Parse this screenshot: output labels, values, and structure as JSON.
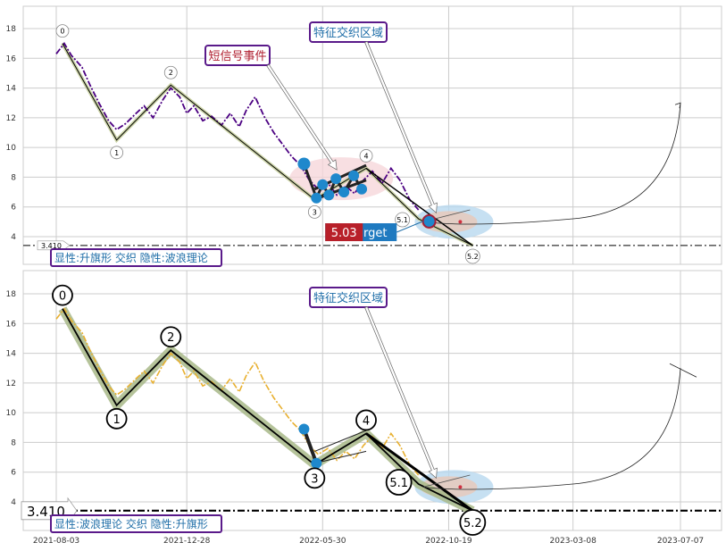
{
  "chart_data": [
    {
      "type": "line",
      "panel": "top",
      "ylim": [
        2.8,
        19.5
      ],
      "yticks": [
        4,
        6,
        8,
        10,
        12,
        14,
        16,
        18
      ],
      "xticks": [
        "2021-08-03",
        "2021-12-28",
        "2022-05-30",
        "2022-10-19",
        "2023-03-08",
        "2023-07-07"
      ],
      "grid": true,
      "support_level": {
        "value": 3.41,
        "label": "3.410"
      },
      "price_series": {
        "color": "#4b0082",
        "style": "dash-dot",
        "x": [
          "2021-08-03",
          "2021-08-12",
          "2021-08-20",
          "2021-09-01",
          "2021-09-10",
          "2021-09-20",
          "2021-10-01",
          "2021-10-10",
          "2021-10-20",
          "2021-11-01",
          "2021-11-10",
          "2021-11-20",
          "2021-12-01",
          "2021-12-10",
          "2021-12-20",
          "2021-12-28",
          "2022-01-05",
          "2022-01-15",
          "2022-01-25",
          "2022-02-05",
          "2022-02-15",
          "2022-02-25",
          "2022-03-05",
          "2022-03-15",
          "2022-03-25",
          "2022-04-05",
          "2022-04-15",
          "2022-04-25",
          "2022-05-05",
          "2022-05-15",
          "2022-05-25",
          "2022-06-05",
          "2022-06-15",
          "2022-06-25",
          "2022-07-05",
          "2022-07-15",
          "2022-07-25",
          "2022-08-05",
          "2022-08-15",
          "2022-08-25",
          "2022-09-05",
          "2022-09-15"
        ],
        "y": [
          16.3,
          17.0,
          16.2,
          15.4,
          14.2,
          13.0,
          11.8,
          11.2,
          11.6,
          12.3,
          12.8,
          12.0,
          13.2,
          14.0,
          13.4,
          12.3,
          12.8,
          11.8,
          12.1,
          11.5,
          12.3,
          11.4,
          12.5,
          13.4,
          12.1,
          11.0,
          10.2,
          9.4,
          8.8,
          7.8,
          7.2,
          7.6,
          6.8,
          7.4,
          6.9,
          7.8,
          8.4,
          7.6,
          8.6,
          7.8,
          6.5,
          5.8
        ]
      },
      "wave_points": [
        {
          "label": "0",
          "x": "2021-08-10",
          "y": 17.0
        },
        {
          "label": "1",
          "x": "2021-10-10",
          "y": 10.5
        },
        {
          "label": "2",
          "x": "2021-12-10",
          "y": 14.2
        },
        {
          "label": "3",
          "x": "2022-05-21",
          "y": 6.5
        },
        {
          "label": "4",
          "x": "2022-07-18",
          "y": 8.6
        },
        {
          "label": "5.1",
          "x": "2022-09-15",
          "y": 5.2
        },
        {
          "label": "5.2",
          "x": "2022-11-15",
          "y": 3.4
        }
      ],
      "flag_points_x": [
        "2022-05-09",
        "2022-05-23",
        "2022-05-30",
        "2022-06-06",
        "2022-06-14",
        "2022-06-23",
        "2022-07-04",
        "2022-07-13"
      ],
      "flag_points_y": [
        8.9,
        6.6,
        7.5,
        6.8,
        7.9,
        7.0,
        8.1,
        7.2
      ],
      "projection_path": {
        "x": [
          "2022-09-20",
          "2022-11-15",
          "2023-03-08",
          "2023-05-15",
          "2023-07-07"
        ],
        "y": [
          5.0,
          4.9,
          5.2,
          8.5,
          13.0
        ]
      },
      "annotations": [
        {
          "text": "短信号事件",
          "color": "#b02030"
        },
        {
          "text": "特征交织区域",
          "color": "#1f6ea8"
        }
      ],
      "target_label": {
        "value": "5.03",
        "suffix": "rget"
      },
      "legend_text": "显性:升旗形 交织 隐性:波浪理论"
    },
    {
      "type": "line",
      "panel": "bottom",
      "ylim": [
        2.8,
        19.5
      ],
      "yticks": [
        4,
        6,
        8,
        10,
        12,
        14,
        16,
        18
      ],
      "xticks": [
        "2021-08-03",
        "2021-12-28",
        "2022-05-30",
        "2022-10-19",
        "2023-03-08",
        "2023-07-07"
      ],
      "grid": true,
      "support_level": {
        "value": 3.41,
        "label": "3.410"
      },
      "price_series": {
        "color": "#e8b030",
        "style": "dash-dot",
        "x": [
          "2021-08-03",
          "2021-08-12",
          "2021-08-20",
          "2021-09-01",
          "2021-09-10",
          "2021-09-20",
          "2021-10-01",
          "2021-10-10",
          "2021-10-20",
          "2021-11-01",
          "2021-11-10",
          "2021-11-20",
          "2021-12-01",
          "2021-12-10",
          "2021-12-20",
          "2021-12-28",
          "2022-01-05",
          "2022-01-15",
          "2022-01-25",
          "2022-02-05",
          "2022-02-15",
          "2022-02-25",
          "2022-03-05",
          "2022-03-15",
          "2022-03-25",
          "2022-04-05",
          "2022-04-15",
          "2022-04-25",
          "2022-05-05",
          "2022-05-15",
          "2022-05-25",
          "2022-06-05",
          "2022-06-15",
          "2022-06-25",
          "2022-07-05",
          "2022-07-15",
          "2022-07-25",
          "2022-08-05",
          "2022-08-15",
          "2022-08-25",
          "2022-09-05",
          "2022-09-15"
        ],
        "y": [
          16.3,
          17.0,
          16.2,
          15.4,
          14.2,
          13.0,
          11.8,
          11.2,
          11.6,
          12.3,
          12.8,
          12.0,
          13.2,
          14.0,
          13.4,
          12.3,
          12.8,
          11.8,
          12.1,
          11.5,
          12.3,
          11.4,
          12.5,
          13.4,
          12.1,
          11.0,
          10.2,
          9.4,
          8.8,
          7.8,
          7.2,
          7.6,
          6.8,
          7.4,
          6.9,
          7.8,
          8.4,
          7.6,
          8.6,
          7.8,
          6.5,
          5.8
        ]
      },
      "wave_points": [
        {
          "label": "0",
          "x": "2021-08-10",
          "y": 17.0
        },
        {
          "label": "1",
          "x": "2021-10-10",
          "y": 10.5
        },
        {
          "label": "2",
          "x": "2021-12-10",
          "y": 14.2
        },
        {
          "label": "3",
          "x": "2022-05-21",
          "y": 6.5
        },
        {
          "label": "4",
          "x": "2022-07-18",
          "y": 8.6
        },
        {
          "label": "5.1",
          "x": "2022-09-15",
          "y": 5.2
        },
        {
          "label": "5.2",
          "x": "2022-11-15",
          "y": 3.4
        }
      ],
      "flag_points_x": [
        "2022-05-09",
        "2022-05-23"
      ],
      "flag_points_y": [
        8.9,
        6.6
      ],
      "projection_path": {
        "x": [
          "2022-09-20",
          "2022-11-15",
          "2023-03-08",
          "2023-05-15",
          "2023-07-07"
        ],
        "y": [
          5.0,
          4.9,
          5.2,
          8.5,
          13.0
        ]
      },
      "annotations": [
        {
          "text": "特征交织区域",
          "color": "#1f6ea8"
        }
      ],
      "legend_text": "显性:波浪理论 交织 隐性:升旗形"
    }
  ],
  "colors": {
    "grid": "#cccccc",
    "flag_blue": "#1f88cc",
    "wave_fill": "#a8b888",
    "annot_border": "#5a1a8a",
    "target_red": "#b8202a",
    "target_blue": "#1f7ac0"
  }
}
